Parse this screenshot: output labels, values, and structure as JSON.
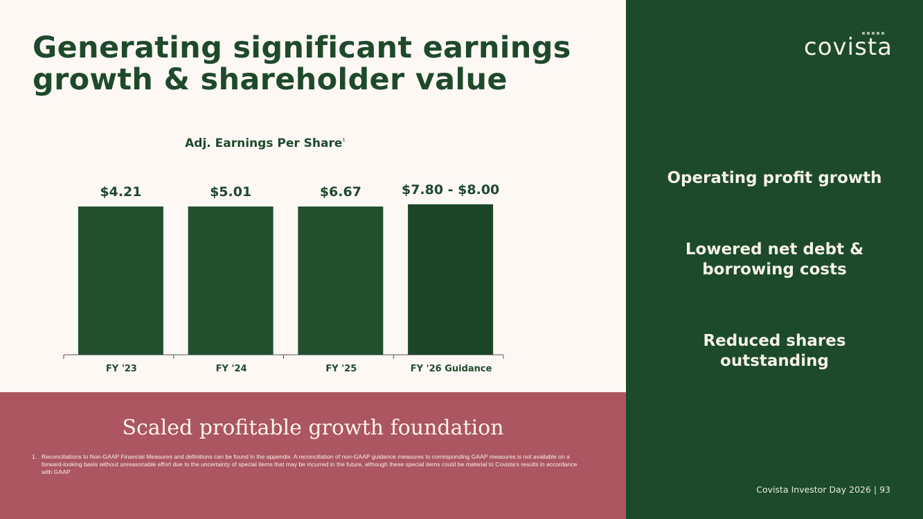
{
  "title": {
    "line1": "Generating significant earnings",
    "line2": "growth & shareholder value"
  },
  "chart_data": {
    "type": "bar",
    "title": "Adj. Earnings Per Share",
    "title_footnote_marker": "1",
    "categories": [
      "FY '23",
      "FY '24",
      "FY '25",
      "FY '26 Guidance"
    ],
    "values": [
      4.21,
      5.01,
      6.67,
      7.9
    ],
    "data_labels": [
      "$4.21",
      "$5.01",
      "$6.67",
      "$7.80 - $8.00"
    ],
    "xlabel": "",
    "ylabel": "",
    "ylim": [
      1.1,
      7.8
    ],
    "grid": false,
    "colors": [
      "#22502f",
      "#22502f",
      "#22502f",
      "#1c4527"
    ]
  },
  "tagline": "Scaled profitable growth foundation",
  "footnote": {
    "number": "1.",
    "text": "Reconciliations to Non-GAAP Financial Measures and definitions can be found in the appendix. A reconciliation of non-GAAP guidance measures to corresponding GAAP measures is not available on a forward-looking basis without unreasonable effort due to the uncertainty of special items that may be incurred in the future, although these special items could be material to Covista's results in accordance with GAAP"
  },
  "logo": "covista",
  "drivers": [
    "Operating profit growth",
    "Lowered net debt & borrowing costs",
    "Reduced shares outstanding"
  ],
  "page_footer": "Covista Investor Day 2026 |  93"
}
